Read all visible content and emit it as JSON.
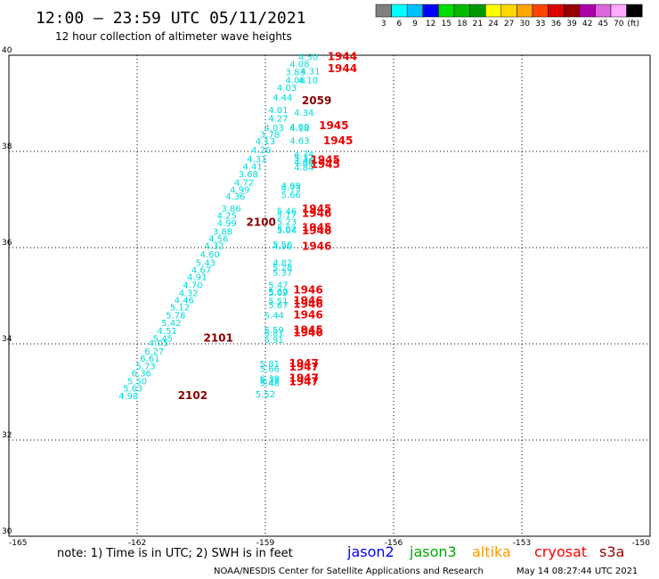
{
  "header": {
    "title": "12:00 – 23:59 UTC 05/11/2021",
    "subtitle": "12 hour collection of altimeter wave heights"
  },
  "color_scale": {
    "unit_label": "(ft)",
    "bins": [
      {
        "label": "3",
        "color": "#808080"
      },
      {
        "label": "6",
        "color": "#00ffff"
      },
      {
        "label": "9",
        "color": "#00bfff"
      },
      {
        "label": "12",
        "color": "#0000ff"
      },
      {
        "label": "15",
        "color": "#00dd00"
      },
      {
        "label": "18",
        "color": "#00bb00"
      },
      {
        "label": "21",
        "color": "#009900"
      },
      {
        "label": "24",
        "color": "#ffff00"
      },
      {
        "label": "27",
        "color": "#ffd700"
      },
      {
        "label": "30",
        "color": "#ffa500"
      },
      {
        "label": "33",
        "color": "#ff4500"
      },
      {
        "label": "36",
        "color": "#dd0000"
      },
      {
        "label": "39",
        "color": "#990000"
      },
      {
        "label": "42",
        "color": "#aa00aa"
      },
      {
        "label": "45",
        "color": "#dd66dd"
      },
      {
        "label": "70",
        "color": "#ffaaff"
      },
      {
        "label": "",
        "color": "#000000"
      }
    ]
  },
  "legend": {
    "note": "note:  1) Time is in UTC;  2) SWH is in feet",
    "satellites": [
      {
        "name": "jason2",
        "color": "#0000ff"
      },
      {
        "name": "jason3",
        "color": "#00aa00"
      },
      {
        "name": "altika",
        "color": "#ff9900"
      },
      {
        "name": "cryosat",
        "color": "#ff0000"
      },
      {
        "name": "s3a",
        "color": "#990000"
      }
    ]
  },
  "footer": {
    "credit": "NOAA/NESDIS Center for Satellite Applications and Research",
    "timestamp": "May 14 08:27:44 UTC 2021"
  },
  "chart_data": {
    "type": "scatter",
    "title": "12:00 – 23:59 UTC 05/11/2021",
    "subtitle": "12 hour collection of altimeter wave heights",
    "xlim": [
      -165,
      -150
    ],
    "ylim": [
      30,
      40
    ],
    "x_ticks": [
      "-165",
      "-162",
      "-159",
      "-156",
      "-153",
      "-150"
    ],
    "y_ticks": [
      "30",
      "32",
      "34",
      "36",
      "38",
      "40"
    ],
    "grid": true,
    "point_color": "#00dddd",
    "series": [
      {
        "name": "",
        "points": [
          {
            "x": -158.0,
            "y": 39.9,
            "v": "4.50"
          },
          {
            "x": -158.2,
            "y": 39.75,
            "v": "4.08"
          },
          {
            "x": -158.3,
            "y": 39.58,
            "v": "3.83"
          },
          {
            "x": -157.95,
            "y": 39.6,
            "v": "4.31"
          },
          {
            "x": -158.3,
            "y": 39.42,
            "v": "4.08"
          },
          {
            "x": -158.0,
            "y": 39.42,
            "v": "4.10"
          },
          {
            "x": -158.5,
            "y": 39.26,
            "v": "4.03"
          },
          {
            "x": -158.6,
            "y": 39.06,
            "v": "4.44"
          },
          {
            "x": -158.7,
            "y": 38.8,
            "v": "4.01"
          },
          {
            "x": -158.1,
            "y": 38.74,
            "v": "4.34"
          },
          {
            "x": -158.7,
            "y": 38.62,
            "v": "4.27"
          },
          {
            "x": -158.8,
            "y": 38.43,
            "v": "4.03"
          },
          {
            "x": -158.2,
            "y": 38.44,
            "v": "4.00"
          },
          {
            "x": -158.2,
            "y": 38.42,
            "v": "4.18"
          },
          {
            "x": -158.9,
            "y": 38.29,
            "v": "3.78"
          },
          {
            "x": -159.0,
            "y": 38.15,
            "v": "4.13"
          },
          {
            "x": -158.2,
            "y": 38.16,
            "v": "4.63"
          },
          {
            "x": -159.1,
            "y": 37.96,
            "v": "4.20"
          },
          {
            "x": -158.1,
            "y": 37.88,
            "v": "4.74"
          },
          {
            "x": -158.1,
            "y": 37.81,
            "v": "5.32"
          },
          {
            "x": -159.2,
            "y": 37.78,
            "v": "4.31"
          },
          {
            "x": -158.1,
            "y": 37.74,
            "v": "3.46"
          },
          {
            "x": -158.1,
            "y": 37.7,
            "v": "4.86"
          },
          {
            "x": -159.3,
            "y": 37.62,
            "v": "4.41"
          },
          {
            "x": -158.1,
            "y": 37.6,
            "v": "4.84"
          },
          {
            "x": -159.4,
            "y": 37.46,
            "v": "3.68"
          },
          {
            "x": -159.5,
            "y": 37.29,
            "v": "4.72"
          },
          {
            "x": -158.4,
            "y": 37.22,
            "v": "4.89"
          },
          {
            "x": -158.4,
            "y": 37.18,
            "v": "4.73"
          },
          {
            "x": -159.6,
            "y": 37.14,
            "v": "4.99"
          },
          {
            "x": -158.4,
            "y": 37.04,
            "v": "5.66"
          },
          {
            "x": -159.7,
            "y": 37.0,
            "v": "4.36"
          },
          {
            "x": -159.8,
            "y": 36.75,
            "v": "3.86"
          },
          {
            "x": -158.5,
            "y": 36.69,
            "v": "5.46"
          },
          {
            "x": -159.9,
            "y": 36.6,
            "v": "4.25"
          },
          {
            "x": -158.5,
            "y": 36.62,
            "v": "5.17"
          },
          {
            "x": -158.5,
            "y": 36.47,
            "v": "5.23"
          },
          {
            "x": -159.9,
            "y": 36.44,
            "v": "4.99"
          },
          {
            "x": -158.5,
            "y": 36.32,
            "v": "5.02"
          },
          {
            "x": -158.5,
            "y": 36.3,
            "v": "5.04"
          },
          {
            "x": -160.0,
            "y": 36.27,
            "v": "3.88"
          },
          {
            "x": -160.1,
            "y": 36.12,
            "v": "4.56"
          },
          {
            "x": -158.6,
            "y": 36.0,
            "v": "5.56"
          },
          {
            "x": -158.6,
            "y": 35.96,
            "v": "4.90"
          },
          {
            "x": -160.2,
            "y": 35.97,
            "v": "4.32"
          },
          {
            "x": -160.3,
            "y": 35.8,
            "v": "4.60"
          },
          {
            "x": -158.6,
            "y": 35.62,
            "v": "4.82"
          },
          {
            "x": -160.4,
            "y": 35.62,
            "v": "5.43"
          },
          {
            "x": -158.6,
            "y": 35.52,
            "v": "5.28"
          },
          {
            "x": -160.5,
            "y": 35.47,
            "v": "4.67"
          },
          {
            "x": -158.6,
            "y": 35.42,
            "v": "5.37"
          },
          {
            "x": -160.6,
            "y": 35.32,
            "v": "4.91"
          },
          {
            "x": -158.7,
            "y": 35.16,
            "v": "5.47"
          },
          {
            "x": -160.7,
            "y": 35.16,
            "v": "4.70"
          },
          {
            "x": -158.7,
            "y": 35.02,
            "v": "5.62"
          },
          {
            "x": -158.7,
            "y": 35.0,
            "v": "5.09"
          },
          {
            "x": -160.8,
            "y": 34.99,
            "v": "4.32"
          },
          {
            "x": -160.9,
            "y": 34.84,
            "v": "4.46"
          },
          {
            "x": -158.7,
            "y": 34.82,
            "v": "5.51"
          },
          {
            "x": -158.7,
            "y": 34.74,
            "v": "5.67"
          },
          {
            "x": -161.0,
            "y": 34.69,
            "v": "5.12"
          },
          {
            "x": -161.1,
            "y": 34.53,
            "v": "5.78"
          },
          {
            "x": -158.8,
            "y": 34.53,
            "v": "5.44"
          },
          {
            "x": -161.2,
            "y": 34.37,
            "v": "5.42"
          },
          {
            "x": -158.8,
            "y": 34.22,
            "v": "5.59"
          },
          {
            "x": -161.3,
            "y": 34.2,
            "v": "4.51"
          },
          {
            "x": -158.8,
            "y": 34.16,
            "v": "5.81"
          },
          {
            "x": -161.4,
            "y": 34.05,
            "v": "5.45"
          },
          {
            "x": -158.8,
            "y": 34.02,
            "v": "5.91"
          },
          {
            "x": -161.5,
            "y": 33.95,
            "v": "4.05"
          },
          {
            "x": -161.6,
            "y": 33.78,
            "v": "6.27"
          },
          {
            "x": -161.7,
            "y": 33.63,
            "v": "6.61"
          },
          {
            "x": -158.9,
            "y": 33.52,
            "v": "5.81"
          },
          {
            "x": -161.8,
            "y": 33.47,
            "v": "5.73"
          },
          {
            "x": -158.9,
            "y": 33.42,
            "v": "5.66"
          },
          {
            "x": -161.9,
            "y": 33.32,
            "v": "6.36"
          },
          {
            "x": -158.9,
            "y": 33.21,
            "v": "6.39"
          },
          {
            "x": -158.9,
            "y": 33.18,
            "v": "5.31"
          },
          {
            "x": -162.0,
            "y": 33.16,
            "v": "5.50"
          },
          {
            "x": -158.9,
            "y": 33.12,
            "v": "5.48"
          },
          {
            "x": -162.1,
            "y": 33.01,
            "v": "5.63"
          },
          {
            "x": -159.0,
            "y": 32.89,
            "v": "5.52"
          },
          {
            "x": -162.2,
            "y": 32.85,
            "v": "4.98"
          }
        ]
      },
      {
        "name": "",
        "type": "time_label",
        "points": [
          {
            "x": -157.2,
            "y": 39.9,
            "v": "1944",
            "color": "#ee0000"
          },
          {
            "x": -157.2,
            "y": 39.65,
            "v": "1944",
            "color": "#ee0000"
          },
          {
            "x": -157.8,
            "y": 38.98,
            "v": "2059",
            "color": "#880000"
          },
          {
            "x": -157.4,
            "y": 38.46,
            "v": "1945",
            "color": "#ee0000"
          },
          {
            "x": -157.3,
            "y": 38.15,
            "v": "1945",
            "color": "#ee0000"
          },
          {
            "x": -157.6,
            "y": 37.75,
            "v": "1945",
            "color": "#ee0000"
          },
          {
            "x": -157.6,
            "y": 37.66,
            "v": "1945",
            "color": "#ee0000"
          },
          {
            "x": -157.8,
            "y": 36.73,
            "v": "1945",
            "color": "#ee0000"
          },
          {
            "x": -157.8,
            "y": 36.64,
            "v": "1946",
            "color": "#ee0000"
          },
          {
            "x": -159.1,
            "y": 36.45,
            "v": "2100",
            "color": "#880000"
          },
          {
            "x": -157.8,
            "y": 36.34,
            "v": "1945",
            "color": "#ee0000"
          },
          {
            "x": -157.8,
            "y": 36.28,
            "v": "1946",
            "color": "#ee0000"
          },
          {
            "x": -157.8,
            "y": 35.95,
            "v": "1946",
            "color": "#ee0000"
          },
          {
            "x": -158.0,
            "y": 35.05,
            "v": "1946",
            "color": "#ee0000"
          },
          {
            "x": -158.0,
            "y": 34.82,
            "v": "1946",
            "color": "#ee0000"
          },
          {
            "x": -158.0,
            "y": 34.75,
            "v": "1946",
            "color": "#ee0000"
          },
          {
            "x": -158.0,
            "y": 34.53,
            "v": "1946",
            "color": "#ee0000"
          },
          {
            "x": -158.0,
            "y": 34.21,
            "v": "1945",
            "color": "#ee0000"
          },
          {
            "x": -158.0,
            "y": 34.16,
            "v": "1946",
            "color": "#ee0000"
          },
          {
            "x": -160.1,
            "y": 34.05,
            "v": "2101",
            "color": "#880000"
          },
          {
            "x": -158.1,
            "y": 33.52,
            "v": "1947",
            "color": "#ee0000"
          },
          {
            "x": -158.1,
            "y": 33.44,
            "v": "1947",
            "color": "#ee0000"
          },
          {
            "x": -158.1,
            "y": 33.21,
            "v": "1947",
            "color": "#ee0000"
          },
          {
            "x": -158.1,
            "y": 33.14,
            "v": "1947",
            "color": "#ee0000"
          },
          {
            "x": -160.7,
            "y": 32.85,
            "v": "2102",
            "color": "#880000"
          }
        ]
      }
    ]
  }
}
